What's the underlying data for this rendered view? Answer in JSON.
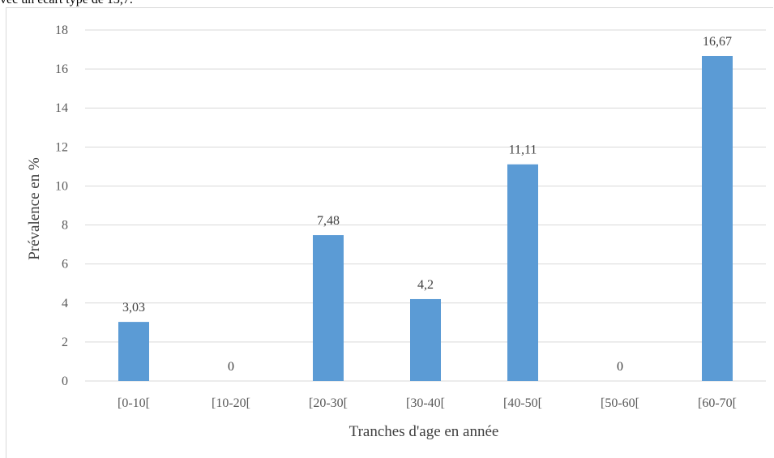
{
  "caption_fragment": "vec un écart type de 13,7.",
  "chart_data": {
    "type": "bar",
    "categories": [
      "[0-10[",
      "[10-20[",
      "[20-30[",
      "[30-40[",
      "[40-50[",
      "[50-60[",
      "[60-70["
    ],
    "values": [
      3.03,
      0,
      7.48,
      4.2,
      11.11,
      0,
      16.67
    ],
    "data_labels": [
      "3,03",
      "0",
      "7,48",
      "4,2",
      "11,11",
      "0",
      "16,67"
    ],
    "xlabel": "Tranches d'age en année",
    "ylabel": "Prévalence en %",
    "ylim": [
      0,
      18
    ],
    "yticks": [
      0,
      2,
      4,
      6,
      8,
      10,
      12,
      14,
      16,
      18
    ],
    "grid": true,
    "bar_color": "#5b9bd5",
    "grid_color": "#d9d9d9"
  }
}
